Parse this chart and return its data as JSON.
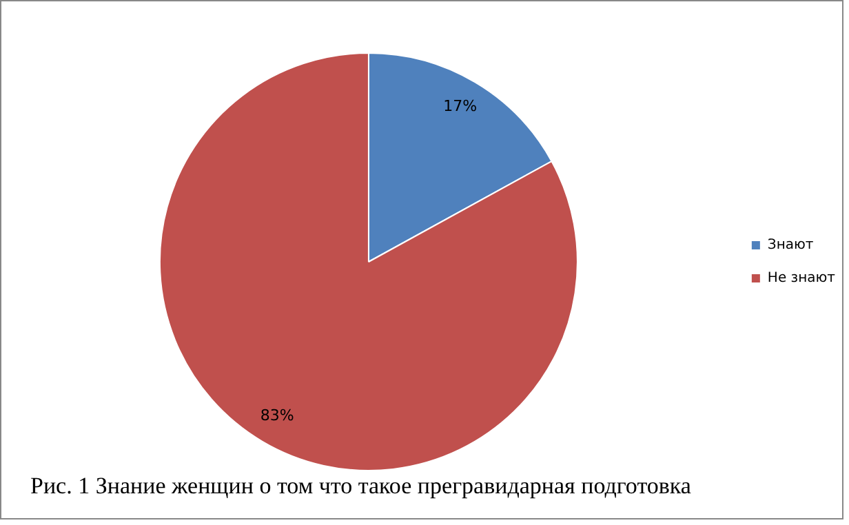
{
  "chart_data": {
    "type": "pie",
    "categories": [
      "Знают",
      "Не знают"
    ],
    "values": [
      17,
      83
    ],
    "colors": [
      "#4f81bd",
      "#c0504d"
    ],
    "value_labels": [
      "17%",
      "83%"
    ],
    "legend": "right",
    "annotations": [
      "Рис. 1 Знание женщин о том что такое прегравидарная подготовка"
    ]
  }
}
